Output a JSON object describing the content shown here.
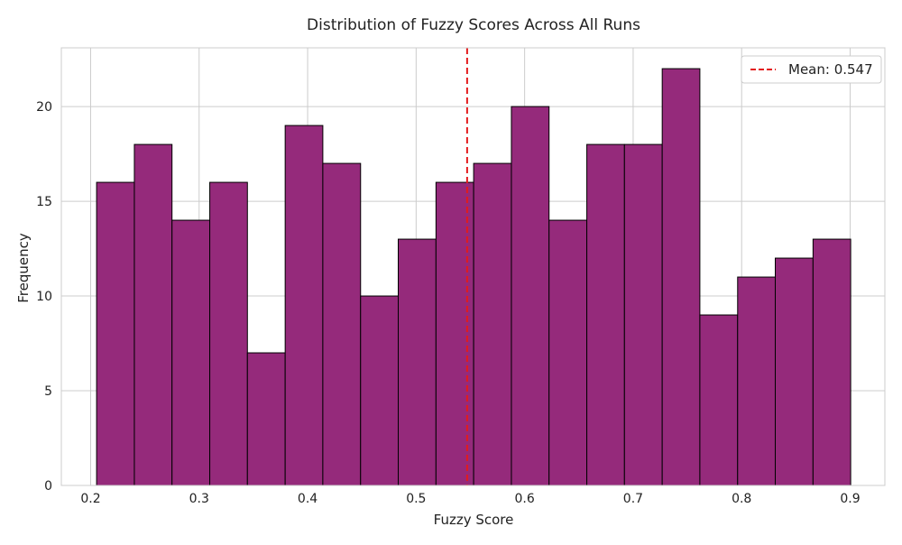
{
  "chart_data": {
    "type": "bar",
    "title": "Distribution of Fuzzy Scores Across All Runs",
    "xlabel": "Fuzzy Score",
    "ylabel": "Frequency",
    "xlim": [
      0.173,
      0.932
    ],
    "ylim": [
      0,
      23.1
    ],
    "xticks": [
      0.2,
      0.3,
      0.4,
      0.5,
      0.6,
      0.7,
      0.8,
      0.9
    ],
    "yticks": [
      0,
      5,
      10,
      15,
      20
    ],
    "bin_edges": [
      0.2055,
      0.2403,
      0.275,
      0.3098,
      0.3445,
      0.3793,
      0.414,
      0.4488,
      0.4835,
      0.5183,
      0.553,
      0.5878,
      0.6225,
      0.6573,
      0.692,
      0.7268,
      0.7615,
      0.7963,
      0.831,
      0.8658,
      0.9005
    ],
    "values": [
      16,
      18,
      14,
      16,
      7,
      19,
      17,
      10,
      13,
      16,
      17,
      20,
      14,
      18,
      18,
      22,
      9,
      11,
      12,
      13
    ],
    "mean_line": {
      "value": 0.547,
      "label": "Mean: 0.547"
    },
    "grid": true,
    "legend_position": "top-right",
    "colors": {
      "bar_fill": "#952a7b",
      "bar_edge": "#000000",
      "mean_line": "#e31a1c",
      "grid": "#cccccc",
      "spine": "#cccccc"
    }
  }
}
